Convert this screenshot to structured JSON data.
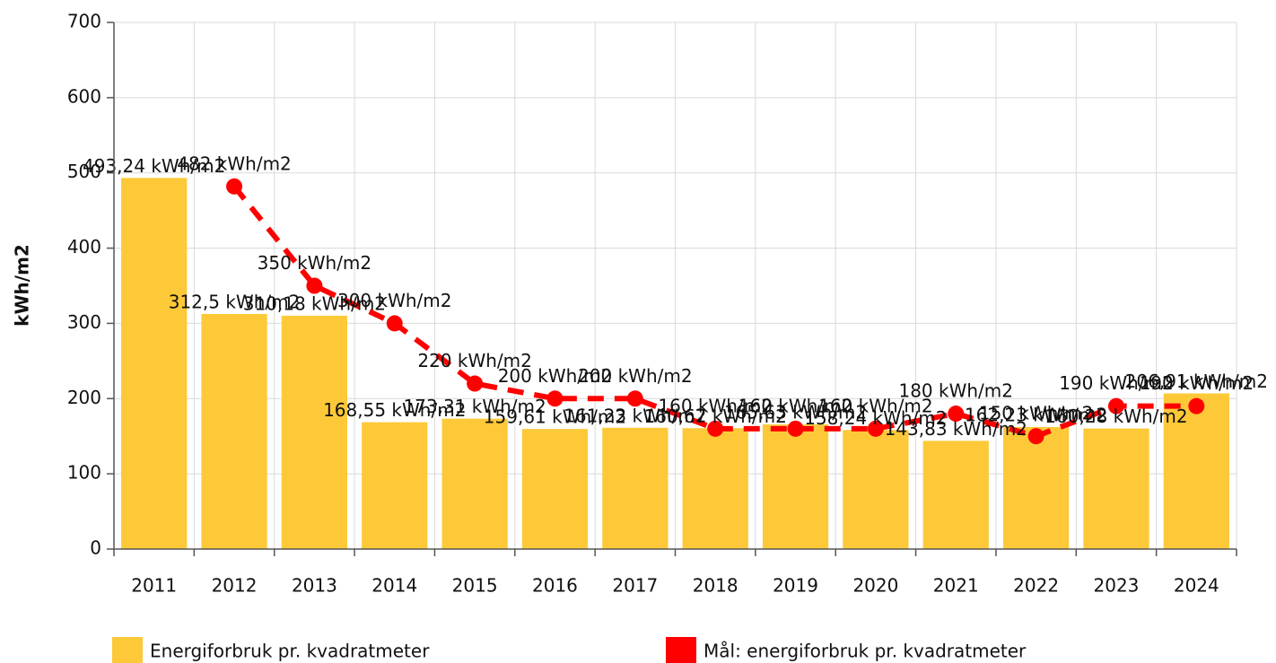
{
  "chart_data": {
    "type": "bar",
    "y_label": "kWh/m2",
    "categories": [
      "2011",
      "2012",
      "2013",
      "2014",
      "2015",
      "2016",
      "2017",
      "2018",
      "2019",
      "2020",
      "2021",
      "2022",
      "2023",
      "2024"
    ],
    "series": [
      {
        "name": "Energiforbruk pr. kvadratmeter",
        "type": "bar",
        "color": "#fdc938",
        "values": [
          493.24,
          312.5,
          310.18,
          168.55,
          173.31,
          159.61,
          161.23,
          160.67,
          165.63,
          158.24,
          143.83,
          162.23,
          160.28,
          206.91
        ],
        "value_labels": [
          "493,24 kWh/m2",
          "312,5 kWh/m2",
          "310,18 kWh/m2",
          "168,55 kWh/m2",
          "173,31 kWh/m2",
          "159,61 kWh/m2",
          "161,23 kWh/m2",
          "160,67 kWh/m2",
          "165,63 kWh/m2",
          "158,24 kWh/m2",
          "143,83 kWh/m2",
          "162,23 kWh/m2",
          "160,28 kWh/m2",
          "206,91 kWh/m2"
        ]
      },
      {
        "name": "Mål: energiforbruk pr. kvadratmeter",
        "type": "line",
        "color": "#ff0000",
        "dashed": true,
        "values": [
          null,
          482,
          350,
          300,
          220,
          200,
          200,
          160,
          160,
          160,
          180,
          150,
          190,
          190
        ],
        "value_labels": [
          null,
          "482 kWh/m2",
          "350 kWh/m2",
          "300 kWh/m2",
          "220 kWh/m2",
          "200 kWh/m2",
          "200 kWh/m2",
          "160 kWh/m2",
          "160 kWh/m2",
          "160 kWh/m2",
          "180 kWh/m2",
          "150 kWh/m2",
          "190 kWh/m2",
          "190 kWh/m2"
        ]
      }
    ],
    "ylim": [
      0,
      700
    ],
    "yticks": [
      0,
      100,
      200,
      300,
      400,
      500,
      600,
      700
    ],
    "grid": true,
    "legend": "bottom"
  }
}
